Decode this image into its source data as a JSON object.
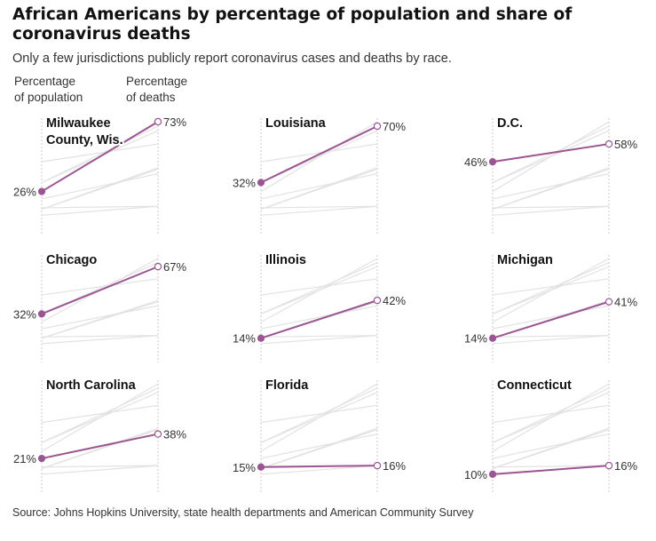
{
  "header": {
    "title": "African Americans by percentage of population and share of coronavirus deaths",
    "subtitle": "Only a few jurisdictions publicly report coronavirus cases and deaths by race."
  },
  "column_labels": {
    "left": [
      "Percentage",
      "of population"
    ],
    "right": [
      "Percentage",
      "of deaths"
    ]
  },
  "source": "Source: Johns Hopkins University, state health departments and American Community Survey",
  "colors": {
    "highlight": "#9b5592",
    "background_lines": "#e2e2e2",
    "axis": "#c8c8c8"
  },
  "chart_data": {
    "type": "line",
    "layout": "small-multiples slope chart, 3x3 grid",
    "x": [
      "Percentage of population",
      "Percentage of deaths"
    ],
    "panels": [
      {
        "name": "Milwaukee County, Wis.",
        "title_lines": [
          "Milwaukee",
          "County, Wis."
        ],
        "values": [
          26,
          73
        ],
        "labels": [
          "26%",
          "73%"
        ]
      },
      {
        "name": "Louisiana",
        "title_lines": [
          "Louisiana"
        ],
        "values": [
          32,
          70
        ],
        "labels": [
          "32%",
          "70%"
        ]
      },
      {
        "name": "D.C.",
        "title_lines": [
          "D.C."
        ],
        "values": [
          46,
          58
        ],
        "labels": [
          "46%",
          "58%"
        ]
      },
      {
        "name": "Chicago",
        "title_lines": [
          "Chicago"
        ],
        "values": [
          32,
          67
        ],
        "labels": [
          "32%",
          "67%"
        ]
      },
      {
        "name": "Illinois",
        "title_lines": [
          "Illinois"
        ],
        "values": [
          14,
          42
        ],
        "labels": [
          "14%",
          "42%"
        ]
      },
      {
        "name": "Michigan",
        "title_lines": [
          "Michigan"
        ],
        "values": [
          14,
          41
        ],
        "labels": [
          "14%",
          "41%"
        ]
      },
      {
        "name": "North Carolina",
        "title_lines": [
          "North Carolina"
        ],
        "values": [
          21,
          38
        ],
        "labels": [
          "21%",
          "38%"
        ]
      },
      {
        "name": "Florida",
        "title_lines": [
          "Florida"
        ],
        "values": [
          15,
          16
        ],
        "labels": [
          "15%",
          "16%"
        ]
      },
      {
        "name": "Connecticut",
        "title_lines": [
          "Connecticut"
        ],
        "values": [
          10,
          16
        ],
        "labels": [
          "10%",
          "16%"
        ]
      }
    ]
  }
}
